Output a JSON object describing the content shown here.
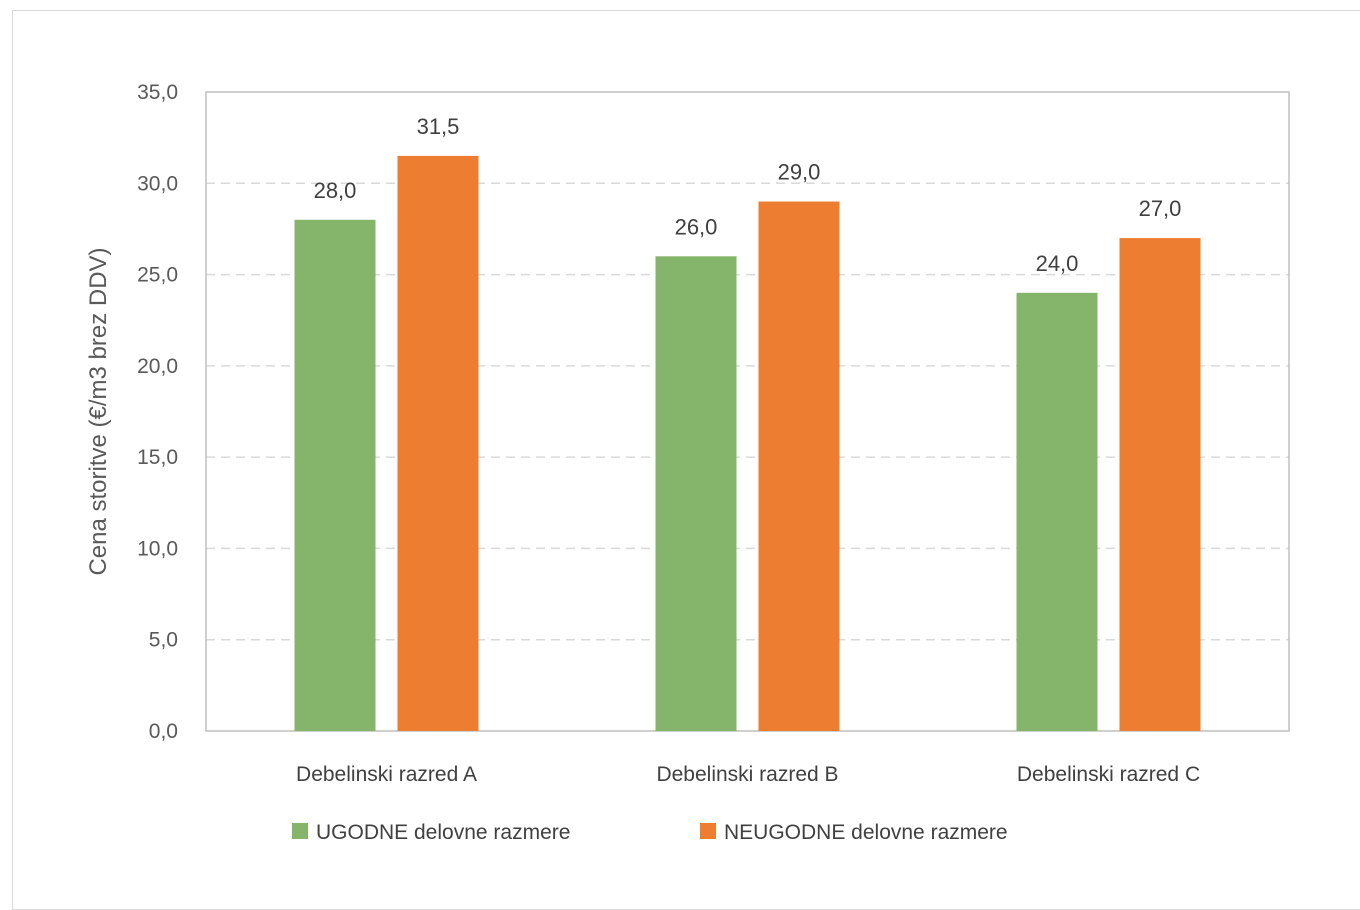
{
  "chart_data": {
    "type": "bar",
    "title": "",
    "xlabel": "",
    "ylabel": "Cena storitve (€/m3 brez DDV)",
    "ylim": [
      0,
      35
    ],
    "ytick_step": 5,
    "ytick_labels": [
      "0,0",
      "5,0",
      "10,0",
      "15,0",
      "20,0",
      "25,0",
      "30,0",
      "35,0"
    ],
    "categories": [
      "Debelinski razred A",
      "Debelinski razred B",
      "Debelinski razred C"
    ],
    "series": [
      {
        "name": "UGODNE delovne razmere",
        "color": "#85b46b",
        "values": [
          28.0,
          26.0,
          24.0
        ],
        "labels": [
          "28,0",
          "26,0",
          "24,0"
        ]
      },
      {
        "name": "NEUGODNE delovne razmere",
        "color": "#ed7d31",
        "values": [
          31.5,
          29.0,
          27.0
        ],
        "labels": [
          "31,5",
          "29,0",
          "27,0"
        ]
      }
    ],
    "grid": "horizontal-dashed",
    "legend_position": "bottom"
  }
}
